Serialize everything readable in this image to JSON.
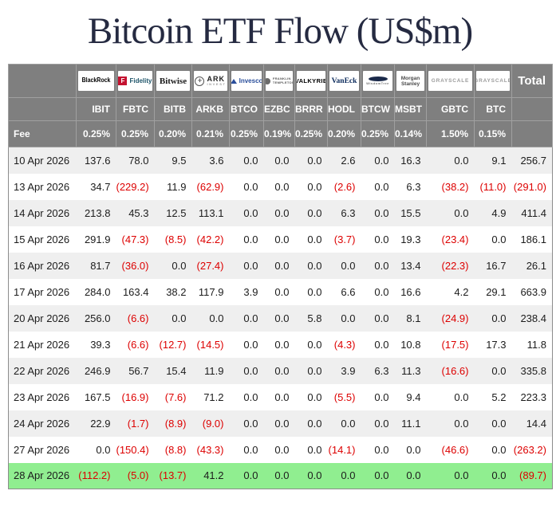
{
  "title": "Bitcoin ETF Flow (US$m)",
  "colors": {
    "title": "#252a41",
    "header_bg": "#7f7f7f",
    "row_alt": "#efefef",
    "highlight_row": "#90ee90",
    "negative": "#dd0000",
    "fidelity_red": "#c41230",
    "invesco_blue": "#2a4e9b",
    "vaneck_navy": "#0b2a5b"
  },
  "table": {
    "total_label": "Total",
    "fee_label": "Fee",
    "issuers": [
      {
        "logo": "blackrock-logo",
        "style": "blackrock",
        "text": "BlackRock"
      },
      {
        "logo": "fidelity-logo",
        "style": "fidelity",
        "text": "Fidelity"
      },
      {
        "logo": "bitwise-logo",
        "style": "bitwise",
        "text": "Bitwise"
      },
      {
        "logo": "ark-invest-logo",
        "style": "ark",
        "text": "ARK",
        "sub": "INVEST"
      },
      {
        "logo": "invesco-logo",
        "style": "invesco",
        "text": "Invesco"
      },
      {
        "logo": "franklin-templeton-logo",
        "style": "franklin",
        "text": "FRANKLIN TEMPLETON"
      },
      {
        "logo": "valkyrie-logo",
        "style": "valkyrie",
        "text": "VALKYRIE"
      },
      {
        "logo": "vaneck-logo",
        "style": "vaneck",
        "text": "VanEck"
      },
      {
        "logo": "wisdomtree-logo",
        "style": "wisdomtree",
        "text": "WisdomTree"
      },
      {
        "logo": "morgan-stanley-logo",
        "style": "morganstanley",
        "text": "Morgan Stanley"
      },
      {
        "logo": "grayscale-gbtc-logo",
        "style": "grayscale",
        "text": "GRAYSCALE"
      },
      {
        "logo": "grayscale-btc-logo",
        "style": "grayscale",
        "text": "GRAYSCALE"
      }
    ],
    "tickers": [
      "IBIT",
      "FBTC",
      "BITB",
      "ARKB",
      "BTCO",
      "EZBC",
      "BRRR",
      "HODL",
      "BTCW",
      "MSBT",
      "GBTC",
      "BTC"
    ],
    "fees": [
      "0.25%",
      "0.25%",
      "0.20%",
      "0.21%",
      "0.25%",
      "0.19%",
      "0.25%",
      "0.20%",
      "0.25%",
      "0.14%",
      "1.50%",
      "0.15%"
    ],
    "rows": [
      {
        "date": "10 Apr 2026",
        "values": [
          "137.6",
          "78.0",
          "9.5",
          "3.6",
          "0.0",
          "0.0",
          "0.0",
          "2.6",
          "0.0",
          "16.3",
          "0.0",
          "9.1"
        ],
        "total": "256.7",
        "highlight": false
      },
      {
        "date": "13 Apr 2026",
        "values": [
          "34.7",
          "(229.2)",
          "11.9",
          "(62.9)",
          "0.0",
          "0.0",
          "0.0",
          "(2.6)",
          "0.0",
          "6.3",
          "(38.2)",
          "(11.0)"
        ],
        "total": "(291.0)",
        "highlight": false
      },
      {
        "date": "14 Apr 2026",
        "values": [
          "213.8",
          "45.3",
          "12.5",
          "113.1",
          "0.0",
          "0.0",
          "0.0",
          "6.3",
          "0.0",
          "15.5",
          "0.0",
          "4.9"
        ],
        "total": "411.4",
        "highlight": false
      },
      {
        "date": "15 Apr 2026",
        "values": [
          "291.9",
          "(47.3)",
          "(8.5)",
          "(42.2)",
          "0.0",
          "0.0",
          "0.0",
          "(3.7)",
          "0.0",
          "19.3",
          "(23.4)",
          "0.0"
        ],
        "total": "186.1",
        "highlight": false
      },
      {
        "date": "16 Apr 2026",
        "values": [
          "81.7",
          "(36.0)",
          "0.0",
          "(27.4)",
          "0.0",
          "0.0",
          "0.0",
          "0.0",
          "0.0",
          "13.4",
          "(22.3)",
          "16.7"
        ],
        "total": "26.1",
        "highlight": false
      },
      {
        "date": "17 Apr 2026",
        "values": [
          "284.0",
          "163.4",
          "38.2",
          "117.9",
          "3.9",
          "0.0",
          "0.0",
          "6.6",
          "0.0",
          "16.6",
          "4.2",
          "29.1"
        ],
        "total": "663.9",
        "highlight": false
      },
      {
        "date": "20 Apr 2026",
        "values": [
          "256.0",
          "(6.6)",
          "0.0",
          "0.0",
          "0.0",
          "0.0",
          "5.8",
          "0.0",
          "0.0",
          "8.1",
          "(24.9)",
          "0.0"
        ],
        "total": "238.4",
        "highlight": false
      },
      {
        "date": "21 Apr 2026",
        "values": [
          "39.3",
          "(6.6)",
          "(12.7)",
          "(14.5)",
          "0.0",
          "0.0",
          "0.0",
          "(4.3)",
          "0.0",
          "10.8",
          "(17.5)",
          "17.3"
        ],
        "total": "11.8",
        "highlight": false
      },
      {
        "date": "22 Apr 2026",
        "values": [
          "246.9",
          "56.7",
          "15.4",
          "11.9",
          "0.0",
          "0.0",
          "0.0",
          "3.9",
          "6.3",
          "11.3",
          "(16.6)",
          "0.0"
        ],
        "total": "335.8",
        "highlight": false
      },
      {
        "date": "23 Apr 2026",
        "values": [
          "167.5",
          "(16.9)",
          "(7.6)",
          "71.2",
          "0.0",
          "0.0",
          "0.0",
          "(5.5)",
          "0.0",
          "9.4",
          "0.0",
          "5.2"
        ],
        "total": "223.3",
        "highlight": false
      },
      {
        "date": "24 Apr 2026",
        "values": [
          "22.9",
          "(1.7)",
          "(8.9)",
          "(9.0)",
          "0.0",
          "0.0",
          "0.0",
          "0.0",
          "0.0",
          "11.1",
          "0.0",
          "0.0"
        ],
        "total": "14.4",
        "highlight": false
      },
      {
        "date": "27 Apr 2026",
        "values": [
          "0.0",
          "(150.4)",
          "(8.8)",
          "(43.3)",
          "0.0",
          "0.0",
          "0.0",
          "(14.1)",
          "0.0",
          "0.0",
          "(46.6)",
          "0.0"
        ],
        "total": "(263.2)",
        "highlight": false
      },
      {
        "date": "28 Apr 2026",
        "values": [
          "(112.2)",
          "(5.0)",
          "(13.7)",
          "41.2",
          "0.0",
          "0.0",
          "0.0",
          "0.0",
          "0.0",
          "0.0",
          "0.0",
          "0.0"
        ],
        "total": "(89.7)",
        "highlight": true
      }
    ]
  }
}
